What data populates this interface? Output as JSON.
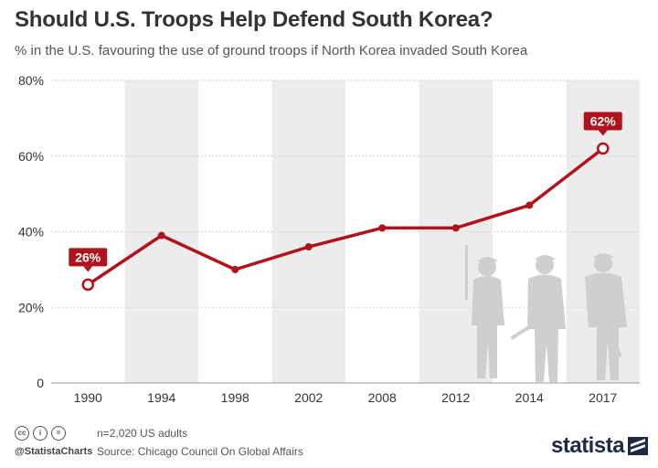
{
  "header": {
    "title": "Should U.S. Troops Help Defend South Korea?",
    "subtitle": "% in the U.S. favouring the use of ground troops if North Korea invaded South Korea"
  },
  "chart_data": {
    "type": "line",
    "categories": [
      "1990",
      "1994",
      "1998",
      "2002",
      "2008",
      "2012",
      "2014",
      "2017"
    ],
    "series": [
      {
        "values": [
          26,
          39,
          30,
          36,
          41,
          41,
          47,
          62
        ]
      }
    ],
    "ylim": [
      0,
      80
    ],
    "yticks": [
      0,
      20,
      40,
      60,
      80
    ],
    "ytick_labels": [
      "0",
      "20%",
      "40%",
      "60%",
      "80%"
    ],
    "data_labels": [
      {
        "category": "1990",
        "text": "26%"
      },
      {
        "category": "2017",
        "text": "62%"
      }
    ],
    "alternating_column_shading": true,
    "grid": true,
    "line_color": "#b0131c"
  },
  "footer": {
    "icons": [
      "cc-icon",
      "by-icon",
      "nd-icon"
    ],
    "handle": "@StatistaCharts",
    "note": "n=2,020 US adults",
    "source": "Source: Chicago Council On Global Affairs",
    "logo": "statista"
  }
}
